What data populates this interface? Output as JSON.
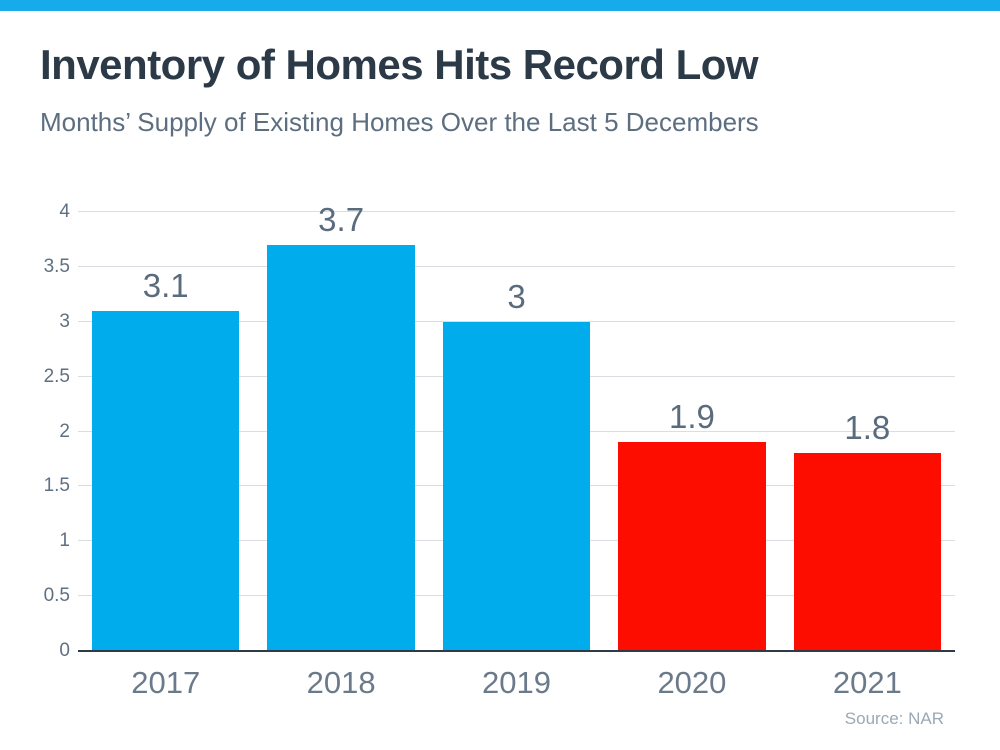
{
  "header": {
    "title": "Inventory of Homes Hits Record Low",
    "subtitle": "Months’ Supply of Existing Homes Over the Last 5 Decembers"
  },
  "footer": {
    "source": "Source: NAR"
  },
  "colors": {
    "brand_stripe": "#18ABEB",
    "bar_blue": "#00ACEC",
    "bar_red": "#FD0D00",
    "gridline": "#DADDE1",
    "axis_line": "#2E3B47",
    "title_text": "#2C3A48",
    "subtitle_text": "#5C6E80",
    "label_text": "#5A6B7D"
  },
  "chart_data": {
    "type": "bar",
    "title": "Inventory of Homes Hits Record Low",
    "subtitle": "Months’ Supply of Existing Homes Over the Last 5 Decembers",
    "categories": [
      "2017",
      "2018",
      "2019",
      "2020",
      "2021"
    ],
    "values": [
      3.1,
      3.7,
      3,
      1.9,
      1.8
    ],
    "value_labels": [
      "3.1",
      "3.7",
      "3",
      "1.9",
      "1.8"
    ],
    "bar_colors": [
      "#00ACEC",
      "#00ACEC",
      "#00ACEC",
      "#FD0D00",
      "#FD0D00"
    ],
    "xlabel": "",
    "ylabel": "",
    "ylim": [
      0,
      4
    ],
    "yticks": [
      0,
      0.5,
      1,
      1.5,
      2,
      2.5,
      3,
      3.5,
      4
    ],
    "ytick_labels": [
      "0",
      "0.5",
      "1",
      "1.5",
      "2",
      "2.5",
      "3",
      "3.5",
      "4"
    ],
    "grid": "horizontal",
    "legend": "none",
    "source": "Source: NAR"
  }
}
